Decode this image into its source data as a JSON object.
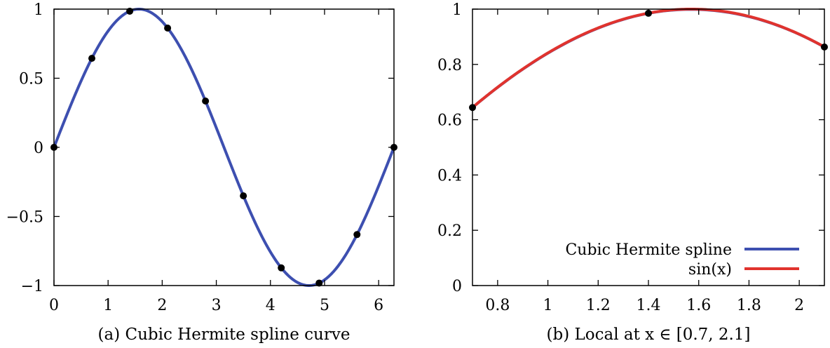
{
  "chart_data": [
    {
      "type": "line",
      "caption": "(a) Cubic Hermite spline curve",
      "xlim": [
        0,
        6.283
      ],
      "ylim": [
        -1,
        1
      ],
      "xticks": [
        "0",
        "1",
        "2",
        "3",
        "4",
        "5",
        "6"
      ],
      "xtick_values": [
        0,
        1,
        2,
        3,
        4,
        5,
        6
      ],
      "yticks": [
        "−1",
        "−0.5",
        "0",
        "0.5",
        "1"
      ],
      "ytick_values": [
        -1,
        -0.5,
        0,
        0.5,
        1
      ],
      "grid": false,
      "series": [
        {
          "curve": "sin(x)",
          "color": "#3d4fb0",
          "x_range": [
            0,
            6.283
          ]
        }
      ],
      "points": {
        "x": [
          0,
          0.7,
          1.4,
          2.1,
          2.8,
          3.5,
          4.2,
          4.9,
          5.6,
          6.283
        ],
        "y": [
          0,
          0.644,
          0.985,
          0.863,
          0.335,
          -0.351,
          -0.872,
          -0.982,
          -0.631,
          0
        ],
        "color": "#000000"
      }
    },
    {
      "type": "line",
      "caption": "(b) Local at x ∈ [0.7, 2.1]",
      "xlim": [
        0.7,
        2.1
      ],
      "ylim": [
        0,
        1
      ],
      "xticks": [
        "0.8",
        "1",
        "1.2",
        "1.4",
        "1.6",
        "1.8",
        "2"
      ],
      "xtick_values": [
        0.8,
        1.0,
        1.2,
        1.4,
        1.6,
        1.8,
        2.0
      ],
      "yticks": [
        "0",
        "0.2",
        "0.4",
        "0.6",
        "0.8",
        "1"
      ],
      "ytick_values": [
        0,
        0.2,
        0.4,
        0.6,
        0.8,
        1
      ],
      "grid": false,
      "legend_position": "bottom-right",
      "series": [
        {
          "name": "Cubic Hermite spline",
          "curve": "hermite",
          "color": "#3d4fb0",
          "x_range": [
            0.7,
            2.1
          ]
        },
        {
          "name": "sin(x)",
          "curve": "sin(x)",
          "color": "#e0332e",
          "x_range": [
            0.7,
            2.1
          ]
        }
      ],
      "points": {
        "x": [
          0.7,
          1.4,
          2.1
        ],
        "y": [
          0.644,
          0.985,
          0.863
        ],
        "color": "#000000"
      }
    }
  ]
}
